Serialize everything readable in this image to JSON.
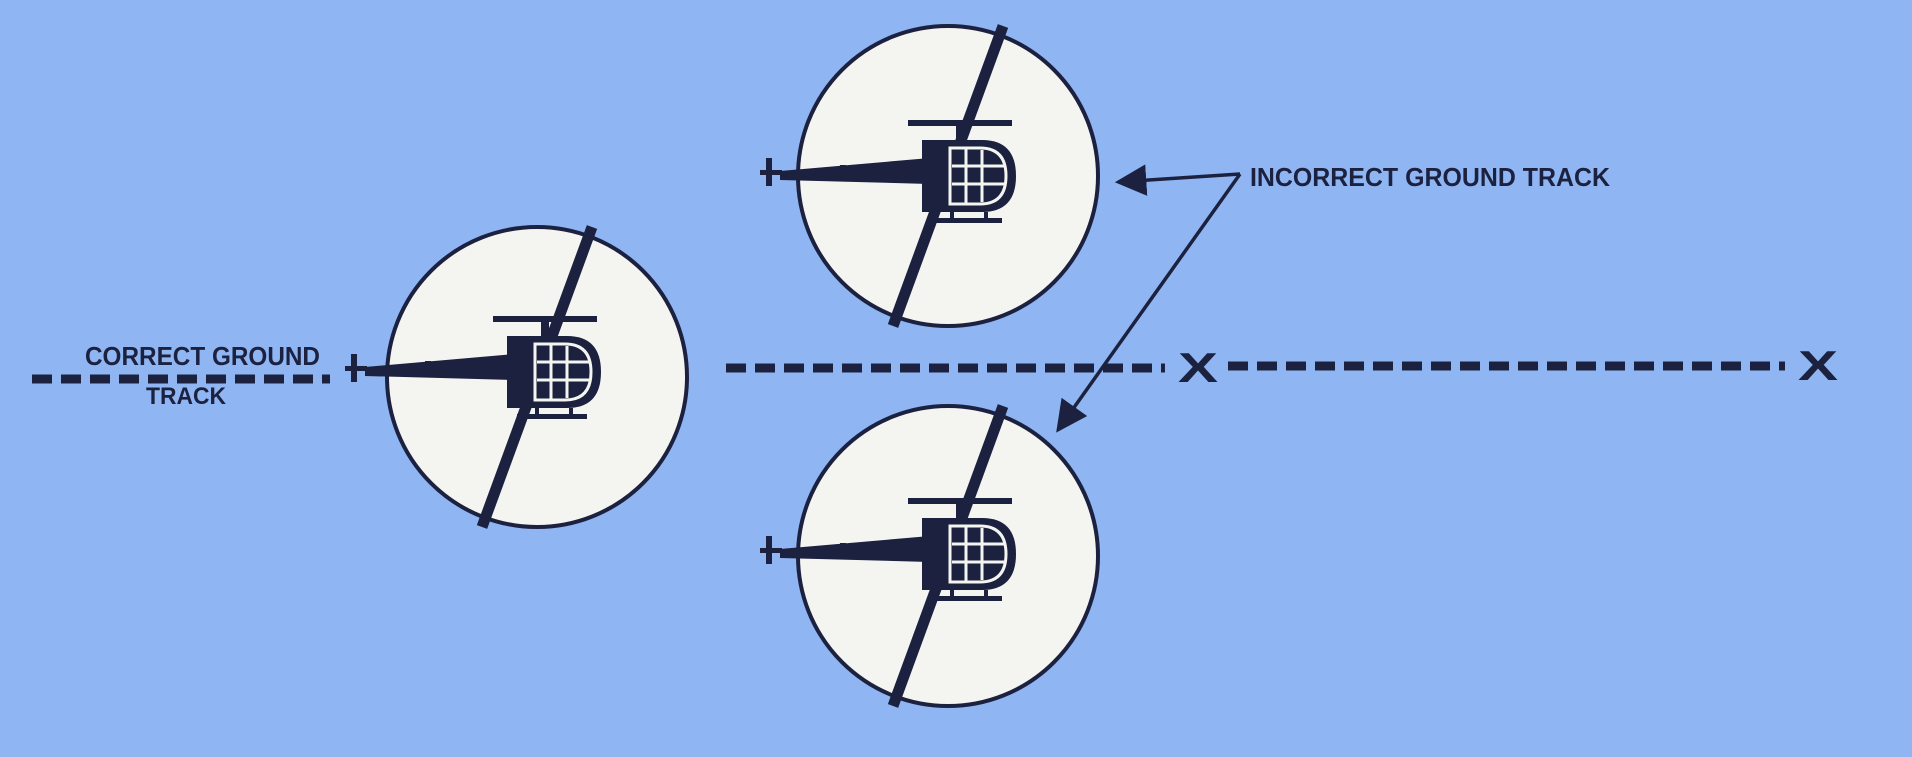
{
  "labels": {
    "correct_line1": "CORRECT GROUND",
    "correct_line2": "TRACK",
    "incorrect": "INCORRECT GROUND TRACK",
    "x_marker": "X"
  },
  "colors": {
    "background": "#8fb6f2",
    "ink": "#1c2140",
    "disc": "#f4f5f1"
  },
  "icons": {
    "rotor_disc": "rotor-disc-icon",
    "helicopter": "helicopter-icon",
    "arrow": "arrow-icon"
  }
}
